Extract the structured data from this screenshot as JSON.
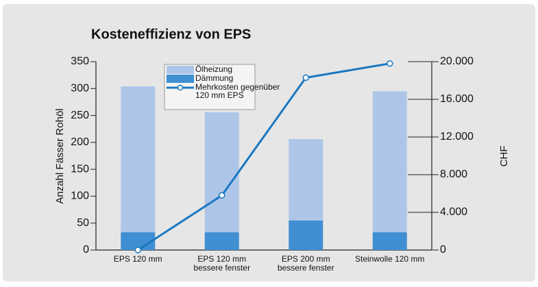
{
  "chart_data": {
    "type": "bar",
    "title": "Kosteneffizienz von EPS",
    "ylabel": "Anzahl Fässer Rohöl",
    "y2label": "CHF",
    "categories": [
      "EPS 120 mm",
      "EPS 120 mm\nbessere fenster",
      "EPS 200 mm\nbessere fenster",
      "Steinwolle 120 mm"
    ],
    "series": [
      {
        "name": "Ölheizung",
        "color": "#adc6e8",
        "values": [
          271,
          223,
          151,
          262
        ]
      },
      {
        "name": "Dämmung",
        "color": "#3f8fd2",
        "values": [
          33,
          33,
          55,
          33
        ]
      },
      {
        "name": "Mehrkosten gegenüber\n120 mm EPS",
        "color": "#1a78c2",
        "type": "line",
        "axis": "y2",
        "values": [
          0,
          5800,
          18300,
          19800
        ]
      }
    ],
    "stacking": [
      "chart_data.series.1",
      "chart_data.series.0"
    ],
    "ylim": [
      0,
      350
    ],
    "yticks": [
      0,
      50,
      100,
      150,
      200,
      250,
      300,
      350
    ],
    "y2lim": [
      0,
      20000
    ],
    "y2ticks": [
      0,
      {
        "value": 4000,
        "label": "4.000"
      },
      {
        "value": 8000,
        "label": "8.000"
      },
      {
        "value": 12000,
        "label": "12.000"
      },
      {
        "value": 16000,
        "label": "16.000"
      },
      {
        "value": 20000,
        "label": "20.000"
      }
    ]
  }
}
